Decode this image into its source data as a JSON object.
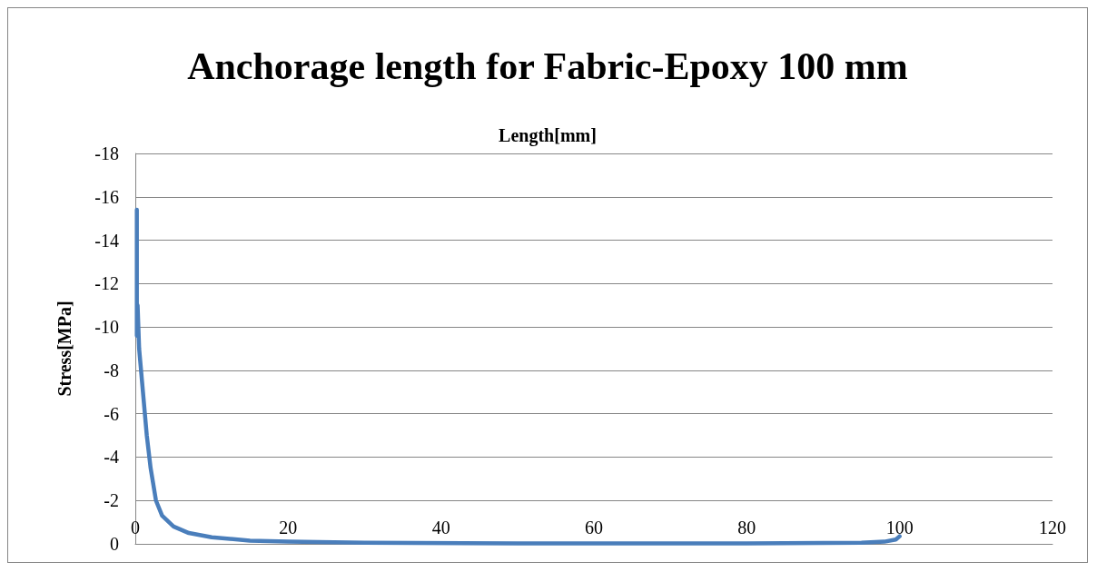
{
  "chart_data": {
    "type": "line",
    "title": "Anchorage length for Fabric-Epoxy 100 mm",
    "xlabel": "Length[mm]",
    "ylabel": "Stress[MPa]",
    "series": [
      {
        "color": "#4a7ebb",
        "x": [
          0.2,
          0.2,
          0.3,
          0.5,
          1,
          1.5,
          2,
          2.7,
          3.5,
          5,
          7,
          10,
          15,
          20,
          30,
          50,
          80,
          95,
          98,
          99.5,
          100
        ],
        "values": [
          -15.4,
          -9.6,
          -11,
          -9,
          -7,
          -5,
          -3.5,
          -2,
          -1.3,
          -0.8,
          -0.5,
          -0.3,
          -0.15,
          -0.1,
          -0.05,
          -0.02,
          -0.02,
          -0.05,
          -0.1,
          -0.2,
          -0.35
        ]
      }
    ],
    "xlim": [
      0,
      120
    ],
    "xticks": [
      0,
      20,
      40,
      60,
      80,
      100,
      120
    ],
    "ylim": [
      0,
      -18
    ],
    "yticks": [
      0,
      -2,
      -4,
      -6,
      -8,
      -10,
      -12,
      -14,
      -16,
      -18
    ],
    "grid": "y",
    "marker": "none",
    "line_style": "solid"
  }
}
